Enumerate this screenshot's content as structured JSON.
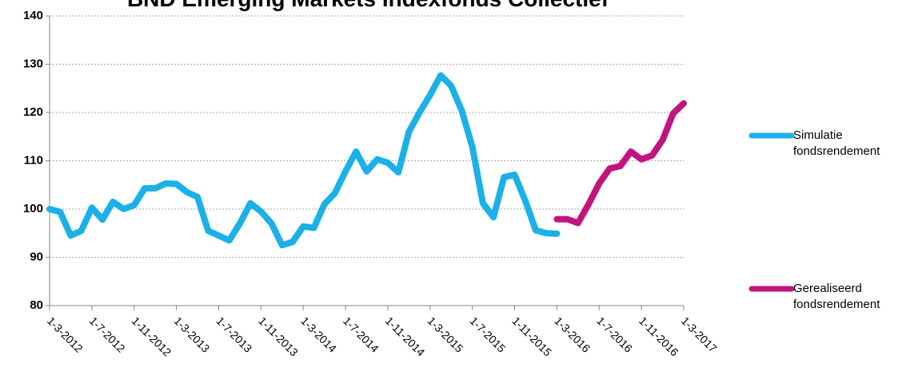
{
  "chart_data": {
    "type": "line",
    "title": "BND Emerging Markets Indexfonds Collectief",
    "categories": [
      "1-3-2012",
      null,
      null,
      null,
      "1-7-2012",
      null,
      null,
      null,
      "1-11-2012",
      null,
      null,
      null,
      "1-3-2013",
      null,
      null,
      null,
      "1-7-2013",
      null,
      null,
      null,
      "1-11-2013",
      null,
      null,
      null,
      "1-3-2014",
      null,
      null,
      null,
      "1-7-2014",
      null,
      null,
      null,
      "1-11-2014",
      null,
      null,
      null,
      "1-3-2015",
      null,
      null,
      null,
      "1-7-2015",
      null,
      null,
      null,
      "1-11-2015",
      null,
      null,
      null,
      "1-3-2016",
      null,
      null,
      null,
      "1-7-2016",
      null,
      null,
      null,
      "1-11-2016",
      null,
      null,
      null,
      "1-3-2017"
    ],
    "series": [
      {
        "name": "Simulatie fondsrendement",
        "color": "#1cb0e8",
        "values": [
          100,
          99.4,
          94.5,
          95.5,
          100.3,
          97.8,
          101.5,
          100,
          100.8,
          104.3,
          104.3,
          105.3,
          105.2,
          103.5,
          102.5,
          95.5,
          94.5,
          93.5,
          97,
          101.2,
          99.5,
          97,
          92.5,
          93.2,
          96.4,
          96.1,
          101,
          103.3,
          107.8,
          111.9,
          107.8,
          110.3,
          109.6,
          107.6,
          116,
          120,
          123.6,
          127.7,
          125.5,
          120.4,
          112.9,
          101.2,
          98.3,
          106.6,
          107.1,
          101.8,
          95.6,
          95,
          94.9,
          null,
          null,
          null,
          null,
          null,
          null,
          null,
          null,
          null,
          null,
          null,
          null
        ]
      },
      {
        "name": "Gerealiseerd fondsrendement",
        "color": "#c0157f",
        "values": [
          null,
          null,
          null,
          null,
          null,
          null,
          null,
          null,
          null,
          null,
          null,
          null,
          null,
          null,
          null,
          null,
          null,
          null,
          null,
          null,
          null,
          null,
          null,
          null,
          null,
          null,
          null,
          null,
          null,
          null,
          null,
          null,
          null,
          null,
          null,
          null,
          null,
          null,
          null,
          null,
          null,
          null,
          null,
          null,
          null,
          null,
          null,
          null,
          97.9,
          97.9,
          97.1,
          101,
          105.3,
          108.4,
          108.9,
          111.9,
          110.3,
          111.1,
          114.3,
          119.8,
          121.9
        ]
      }
    ],
    "ylim": [
      80,
      140
    ],
    "yticks": [
      80,
      90,
      100,
      110,
      120,
      130,
      140
    ],
    "grid": true
  }
}
